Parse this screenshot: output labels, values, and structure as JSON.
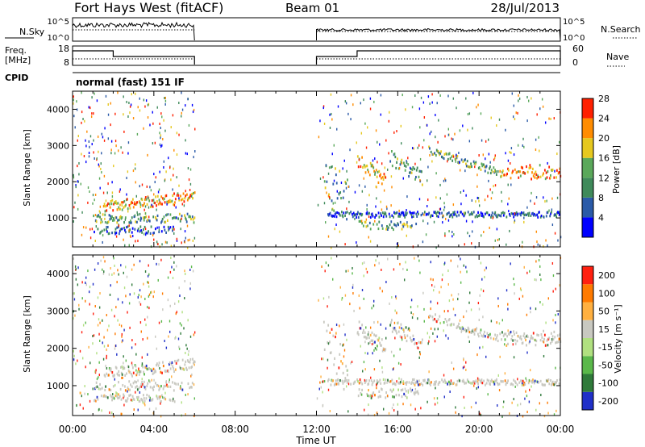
{
  "header": {
    "station": "Fort Hays West (fitACF)",
    "beam": "Beam 01",
    "date": "28/Jul/2013"
  },
  "panels": {
    "nsky": {
      "left_label": "N.Sky",
      "right_label": "N.Search",
      "left_ticks": [
        "10^5",
        "10^0"
      ],
      "right_ticks": [
        "10^5",
        "10^0"
      ]
    },
    "freq": {
      "left_label_1": "Freq.",
      "left_label_2": "[MHz]",
      "right_label": "Nave",
      "left_ticks": [
        "18",
        "8"
      ],
      "right_ticks": [
        "60",
        "0"
      ]
    },
    "cpid": {
      "label": "CPID",
      "program": "normal (fast) 151 IF"
    }
  },
  "chart_data": [
    {
      "type": "line",
      "name": "noise-sky",
      "x": [
        "00:00",
        "06:00",
        "12:00",
        "00:00"
      ],
      "note_segments": [
        [
          "00:00",
          "06:00"
        ],
        [
          "12:00",
          "00:00"
        ]
      ]
    },
    {
      "type": "heatmap",
      "name": "power",
      "xlabel": "",
      "ylabel": "Slant Range [km]",
      "x_ticks": [
        "00:00",
        "04:00",
        "08:00",
        "12:00",
        "16:00",
        "20:00",
        "00:00"
      ],
      "y_ticks": [
        "1000",
        "2000",
        "3000",
        "4000"
      ],
      "ylim": [
        200,
        4500
      ],
      "colorbar": {
        "label": "Power [dB]",
        "ticks": [
          "4",
          "8",
          "12",
          "16",
          "20",
          "24",
          "28"
        ],
        "colors": [
          "#0000ff",
          "#2a5aa8",
          "#3f8a5a",
          "#5aa85a",
          "#e6c81e",
          "#ff8c00",
          "#ff2000"
        ]
      }
    },
    {
      "type": "heatmap",
      "name": "velocity",
      "xlabel": "Time UT",
      "ylabel": "Slant Range [km]",
      "x_ticks": [
        "00:00",
        "04:00",
        "08:00",
        "12:00",
        "16:00",
        "20:00",
        "00:00"
      ],
      "y_ticks": [
        "1000",
        "2000",
        "3000",
        "4000"
      ],
      "ylim": [
        200,
        4500
      ],
      "colorbar": {
        "label": "Velocity [m s⁻¹]",
        "ticks": [
          "200",
          "100",
          "50",
          "15",
          "-15",
          "-50",
          "-100",
          "-200"
        ],
        "colors": [
          "#2030c8",
          "#2f7a3a",
          "#5ab84a",
          "#b0e080",
          "#c8c8c0",
          "#ffb040",
          "#ff7a00",
          "#ff2010"
        ]
      }
    }
  ]
}
